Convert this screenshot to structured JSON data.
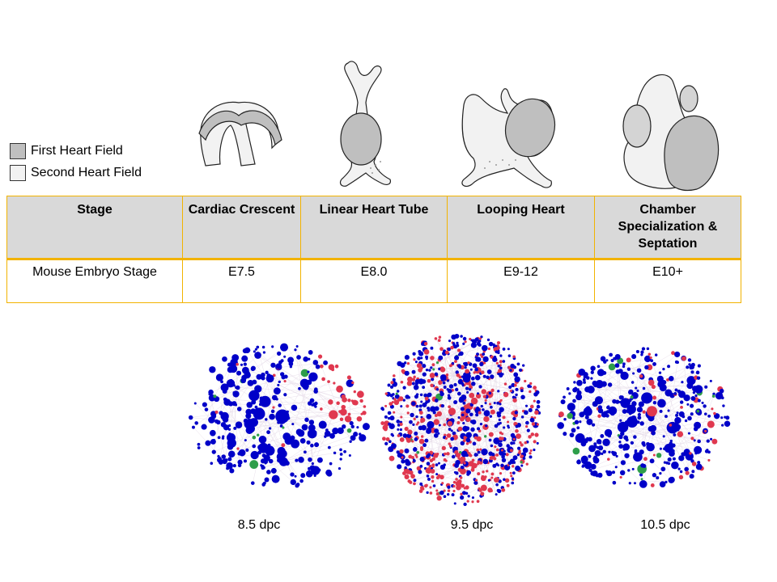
{
  "legend": {
    "first": {
      "label": "First Heart Field",
      "color": "#bfbfbf"
    },
    "second": {
      "label": "Second Heart Field",
      "color": "#f2f2f2"
    }
  },
  "table": {
    "headers": [
      "Stage",
      "Cardiac Crescent",
      "Linear Heart Tube",
      "Looping Heart",
      "Chamber Specialization & Septation"
    ],
    "row": [
      "Mouse Embryo Stage",
      "E7.5",
      "E8.0",
      "E9-12",
      "E10+"
    ]
  },
  "networks": {
    "labels": [
      "8.5 dpc",
      "9.5 dpc",
      "10.5 dpc"
    ],
    "colors": {
      "blue": "#0000c8",
      "red": "#e0384f",
      "green": "#2e9e4a",
      "edge": "#d8c8dc"
    }
  }
}
